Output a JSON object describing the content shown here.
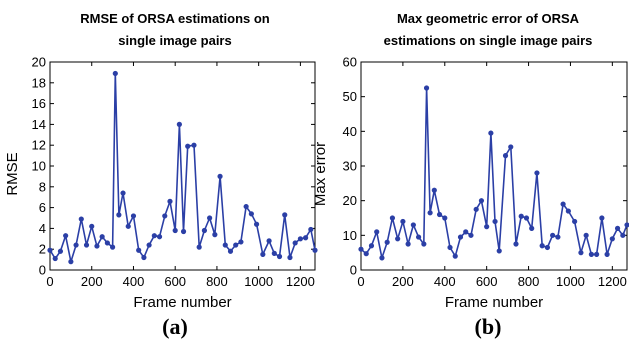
{
  "chart_data": [
    {
      "type": "line",
      "panel_label": "(a)",
      "title_lines": [
        "RMSE of ORSA estimations on",
        "single image pairs"
      ],
      "xlabel": "Frame number",
      "ylabel": "RMSE",
      "xlim": [
        0,
        1270
      ],
      "ylim": [
        0,
        20
      ],
      "xticks": [
        "0",
        "200",
        "400",
        "600",
        "800",
        "1000",
        "1200"
      ],
      "yticks": [
        "0",
        "2",
        "4",
        "6",
        "8",
        "10",
        "12",
        "14",
        "16",
        "18",
        "20"
      ],
      "grid": false,
      "color": "#2b3fa6",
      "x": [
        0,
        25,
        50,
        75,
        100,
        125,
        150,
        175,
        200,
        225,
        250,
        275,
        300,
        313,
        330,
        350,
        375,
        400,
        425,
        450,
        475,
        500,
        525,
        550,
        575,
        600,
        620,
        640,
        660,
        690,
        715,
        740,
        765,
        790,
        815,
        840,
        865,
        890,
        915,
        940,
        965,
        990,
        1020,
        1050,
        1075,
        1100,
        1125,
        1150,
        1175,
        1200,
        1225,
        1250,
        1270
      ],
      "y": [
        1.9,
        1.1,
        1.8,
        3.3,
        0.8,
        2.4,
        4.9,
        2.4,
        4.2,
        2.3,
        3.2,
        2.6,
        2.2,
        18.9,
        5.3,
        7.4,
        4.2,
        5.2,
        1.9,
        1.2,
        2.4,
        3.3,
        3.2,
        5.2,
        6.6,
        3.8,
        14.0,
        3.7,
        11.9,
        12.0,
        2.2,
        3.8,
        5.0,
        3.4,
        9.0,
        2.4,
        1.8,
        2.4,
        2.7,
        6.1,
        5.4,
        4.4,
        1.5,
        2.8,
        1.6,
        1.3,
        5.3,
        1.2,
        2.6,
        3.0,
        3.1,
        3.9,
        1.9
      ]
    },
    {
      "type": "line",
      "panel_label": "(b)",
      "title_lines": [
        "Max geometric error of ORSA",
        "estimations on single image pairs"
      ],
      "xlabel": "Frame number",
      "ylabel": "Max error",
      "xlim": [
        0,
        1270
      ],
      "ylim": [
        0,
        60
      ],
      "xticks": [
        "0",
        "200",
        "400",
        "600",
        "800",
        "1000",
        "1200"
      ],
      "yticks": [
        "0",
        "10",
        "20",
        "30",
        "40",
        "50",
        "60"
      ],
      "grid": false,
      "color": "#2b3fa6",
      "x": [
        0,
        25,
        50,
        75,
        100,
        125,
        150,
        175,
        200,
        225,
        250,
        275,
        300,
        313,
        330,
        350,
        375,
        400,
        425,
        450,
        475,
        500,
        525,
        550,
        575,
        600,
        620,
        640,
        660,
        690,
        715,
        740,
        765,
        790,
        815,
        840,
        865,
        890,
        915,
        940,
        965,
        990,
        1020,
        1050,
        1075,
        1100,
        1125,
        1150,
        1175,
        1200,
        1225,
        1250,
        1270
      ],
      "y": [
        6.0,
        4.7,
        7.0,
        11.0,
        3.5,
        8.0,
        15.0,
        9.0,
        14.0,
        7.5,
        13.0,
        9.5,
        7.5,
        52.5,
        16.5,
        23.0,
        16.0,
        15.0,
        6.5,
        4.0,
        9.5,
        11.0,
        10.0,
        17.5,
        20.0,
        12.5,
        39.5,
        14.0,
        5.5,
        33.0,
        35.5,
        7.5,
        15.5,
        15.0,
        12.0,
        28.0,
        7.0,
        6.5,
        10.0,
        9.5,
        19.0,
        17.0,
        14.0,
        5.0,
        10.0,
        4.5,
        4.5,
        15.0,
        4.5,
        9.0,
        12.0,
        10.0,
        13.0
      ]
    }
  ]
}
